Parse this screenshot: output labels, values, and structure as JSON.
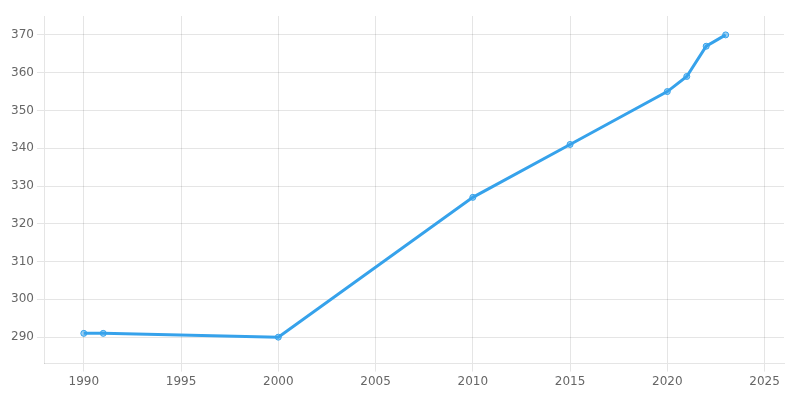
{
  "chart_data": {
    "type": "line",
    "x": [
      1990,
      1991,
      2000,
      2010,
      2015,
      2020,
      2021,
      2022,
      2023
    ],
    "values": [
      291,
      291,
      290,
      327,
      341,
      355,
      359,
      367,
      370
    ],
    "xlim": [
      1988,
      2026
    ],
    "ylim": [
      283,
      375
    ],
    "xticks": [
      1990,
      1995,
      2000,
      2005,
      2010,
      2015,
      2020,
      2025
    ],
    "yticks": [
      290,
      300,
      310,
      320,
      330,
      340,
      350,
      360,
      370
    ],
    "grid": true,
    "marker": "circle"
  }
}
